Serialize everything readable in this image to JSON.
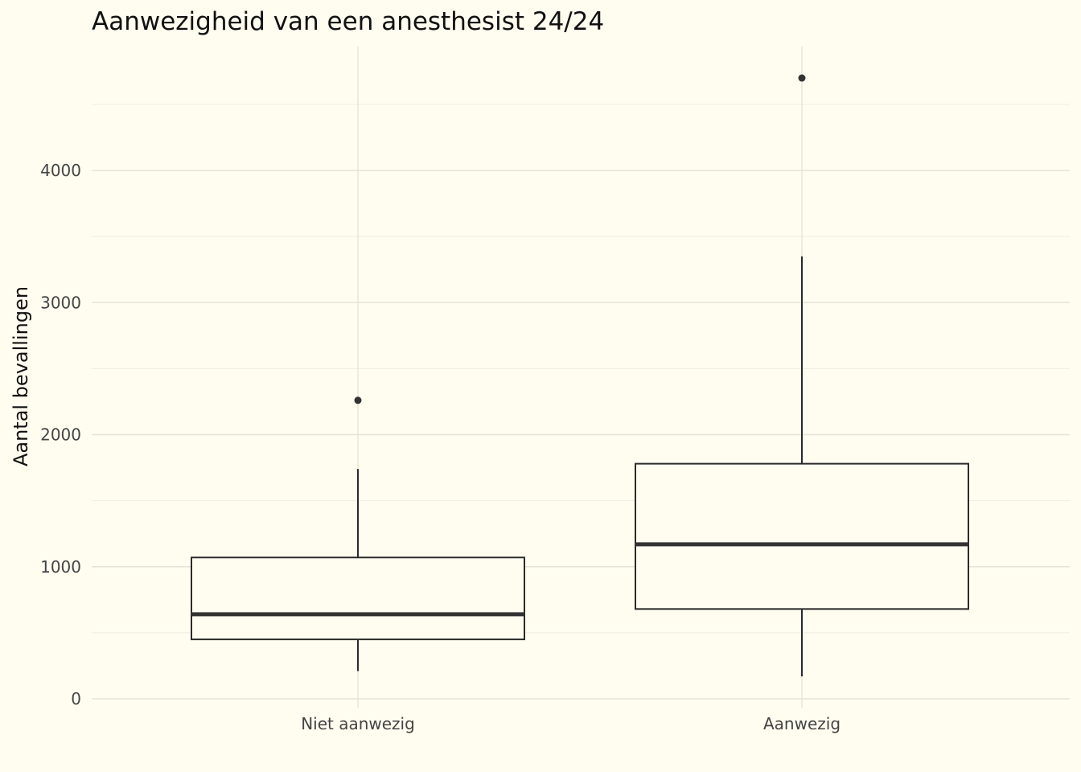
{
  "chart_data": {
    "type": "boxplot",
    "title": "Aanwezigheid van een anesthesist 24/24",
    "xlabel": "",
    "ylabel": "Aantal bevallingen",
    "ylim": [
      0,
      4800
    ],
    "y_ticks": [
      0,
      1000,
      2000,
      3000,
      4000
    ],
    "y_tick_labels": [
      "0",
      "1000",
      "2000",
      "3000",
      "4000"
    ],
    "grid": true,
    "legend": "none",
    "categories": [
      "Niet aanwezig",
      "Aanwezig"
    ],
    "boxes": [
      {
        "category": "Niet aanwezig",
        "whisker_low": 210,
        "q1": 450,
        "median": 640,
        "q3": 1070,
        "whisker_high": 1740,
        "outliers": [
          2260
        ]
      },
      {
        "category": "Aanwezig",
        "whisker_low": 170,
        "q1": 680,
        "median": 1170,
        "q3": 1780,
        "whisker_high": 3350,
        "outliers": [
          4700
        ]
      }
    ],
    "colors": {
      "background": "#FFFDF0",
      "box_fill": "#FFFDF0",
      "box_line": "#2b2b2b",
      "grid": "#E6E4D8"
    }
  }
}
